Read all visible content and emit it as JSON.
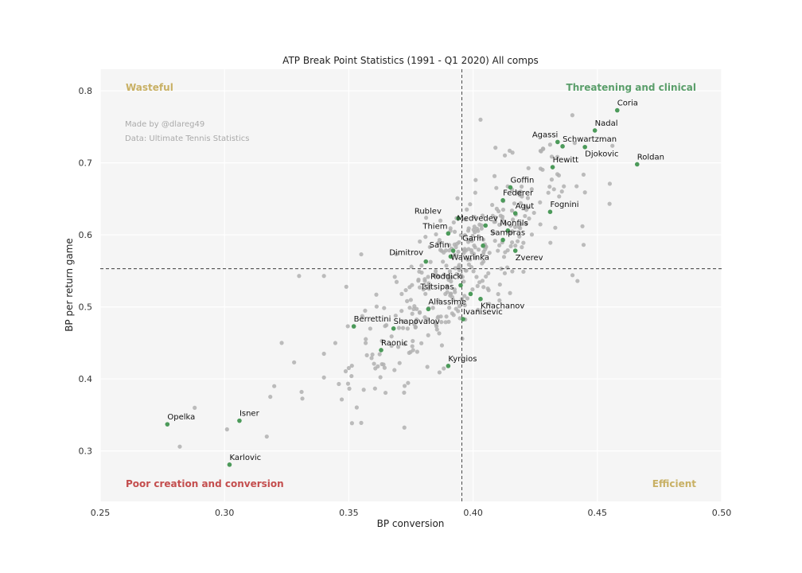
{
  "chart_data": {
    "type": "scatter",
    "title": "ATP Break Point Statistics (1991 - Q1 2020) All comps",
    "xlabel": "BP conversion",
    "ylabel": "BP per return game",
    "xlim": [
      0.25,
      0.5
    ],
    "ylim": [
      0.23,
      0.83
    ],
    "x_ticks": [
      "0.25",
      "0.30",
      "0.35",
      "0.40",
      "0.45",
      "0.50"
    ],
    "y_ticks": [
      "0.3",
      "0.4",
      "0.5",
      "0.6",
      "0.7",
      "0.8"
    ],
    "grid": true,
    "reference_lines": {
      "x": 0.3955,
      "y": 0.553
    },
    "quadrant_labels": {
      "top_left": "Wasteful",
      "top_right": "Threatening and clinical",
      "bottom_left": "Poor creation and conversion",
      "bottom_right": "Efficient"
    },
    "credits": [
      "Made by @dlareg49",
      "Data: Ultimate Tennis Statistics"
    ],
    "colors": {
      "highlight": "#4c9a5a",
      "background_points": "#b0b0b0",
      "wasteful": "#c8b064",
      "threatening": "#5a9e6a",
      "poor": "#c44e4e",
      "efficient": "#c8b064",
      "plot_bg": "#f5f5f5"
    },
    "highlighted": [
      {
        "name": "Coria",
        "x": 0.458,
        "y": 0.773
      },
      {
        "name": "Nadal",
        "x": 0.449,
        "y": 0.745
      },
      {
        "name": "Agassi",
        "x": 0.434,
        "y": 0.729
      },
      {
        "name": "Schwartzman",
        "x": 0.436,
        "y": 0.723
      },
      {
        "name": "Djokovic",
        "x": 0.445,
        "y": 0.722
      },
      {
        "name": "Roldan",
        "x": 0.466,
        "y": 0.698
      },
      {
        "name": "Hewitt",
        "x": 0.432,
        "y": 0.694
      },
      {
        "name": "Goffin",
        "x": 0.415,
        "y": 0.666
      },
      {
        "name": "Federer",
        "x": 0.412,
        "y": 0.648
      },
      {
        "name": "Agut",
        "x": 0.417,
        "y": 0.63
      },
      {
        "name": "Fognini",
        "x": 0.431,
        "y": 0.632
      },
      {
        "name": "Rubley",
        "x": 0.394,
        "y": 0.623
      },
      {
        "name": "Medvedev",
        "x": 0.405,
        "y": 0.613
      },
      {
        "name": "Monfils",
        "x": 0.414,
        "y": 0.606
      },
      {
        "name": "Thiem",
        "x": 0.39,
        "y": 0.602
      },
      {
        "name": "Sampras",
        "x": 0.412,
        "y": 0.593
      },
      {
        "name": "Garin",
        "x": 0.404,
        "y": 0.585
      },
      {
        "name": "Zverev",
        "x": 0.417,
        "y": 0.578
      },
      {
        "name": "Safin",
        "x": 0.392,
        "y": 0.578
      },
      {
        "name": "Wawrinka",
        "x": 0.391,
        "y": 0.57
      },
      {
        "name": "Dimitrov",
        "x": 0.381,
        "y": 0.563
      },
      {
        "name": "Roddick",
        "x": 0.395,
        "y": 0.53
      },
      {
        "name": "Tsitsipas",
        "x": 0.399,
        "y": 0.518
      },
      {
        "name": "Khachanov",
        "x": 0.403,
        "y": 0.511
      },
      {
        "name": "Aliassime",
        "x": 0.382,
        "y": 0.497
      },
      {
        "name": "Ivanisevic",
        "x": 0.396,
        "y": 0.483
      },
      {
        "name": "Berrettini",
        "x": 0.352,
        "y": 0.473
      },
      {
        "name": "Shapovalov",
        "x": 0.368,
        "y": 0.47
      },
      {
        "name": "Raonic",
        "x": 0.363,
        "y": 0.44
      },
      {
        "name": "Kyrgios",
        "x": 0.39,
        "y": 0.418
      },
      {
        "name": "Opelka",
        "x": 0.277,
        "y": 0.337
      },
      {
        "name": "Isner",
        "x": 0.306,
        "y": 0.342
      },
      {
        "name": "Karlovic",
        "x": 0.302,
        "y": 0.281
      }
    ]
  },
  "labels": {
    "rubley_display": "Rublev"
  }
}
